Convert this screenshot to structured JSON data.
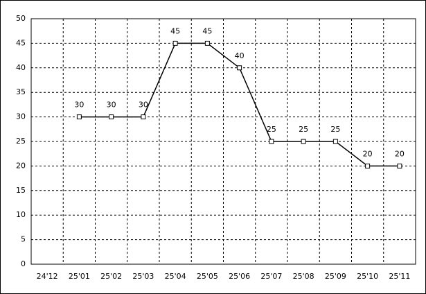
{
  "chart_data": {
    "type": "line",
    "categories": [
      "24'12",
      "25'01",
      "25'02",
      "25'03",
      "25'04",
      "25'05",
      "25'06",
      "25'07",
      "25'08",
      "25'09",
      "25'10",
      "25'11"
    ],
    "values": [
      null,
      30,
      30,
      30,
      45,
      45,
      40,
      25,
      25,
      25,
      20,
      20
    ],
    "color": "#000000",
    "ylim": [
      0,
      50
    ],
    "yticks": [
      0,
      5,
      10,
      15,
      20,
      25,
      30,
      35,
      40,
      45,
      50
    ],
    "grid": true,
    "data_labels": true
  }
}
